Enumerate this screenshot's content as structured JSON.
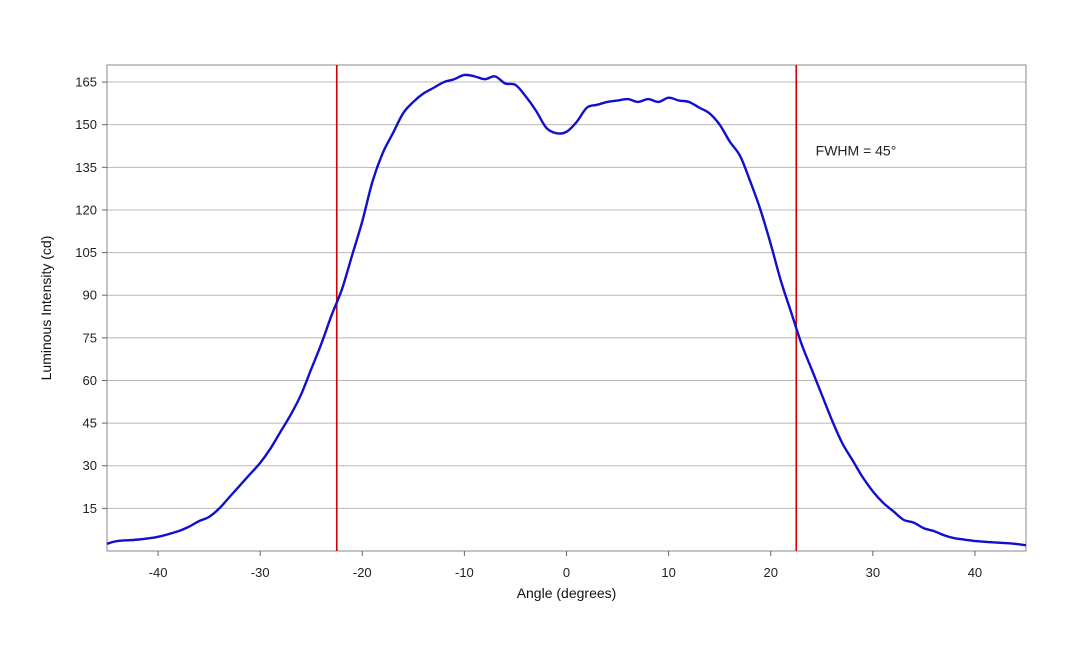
{
  "chart_data": {
    "type": "line",
    "title": "",
    "xlabel": "Angle (degrees)",
    "ylabel": "Luminous Intensity (cd)",
    "xlim": [
      -45,
      45
    ],
    "ylim": [
      0,
      171
    ],
    "x_ticks": [
      -40,
      -30,
      -20,
      -10,
      0,
      10,
      20,
      30,
      40
    ],
    "y_ticks": [
      15,
      30,
      45,
      60,
      75,
      90,
      105,
      120,
      135,
      150,
      165
    ],
    "grid": "horizontal",
    "legend": "none",
    "series": [
      {
        "color": "#1010cc",
        "x": [
          -45,
          -44,
          -42,
          -40,
          -38,
          -37,
          -36,
          -35,
          -34,
          -33,
          -32,
          -31,
          -30,
          -29,
          -28,
          -27,
          -26,
          -25,
          -24,
          -23,
          -22,
          -21,
          -20,
          -19,
          -18,
          -17,
          -16,
          -15,
          -14,
          -13,
          -12,
          -11,
          -10,
          -9,
          -8,
          -7,
          -6,
          -5,
          -4,
          -3,
          -2,
          -1,
          0,
          1,
          2,
          3,
          4,
          5,
          6,
          7,
          8,
          9,
          10,
          11,
          12,
          13,
          14,
          15,
          16,
          17,
          18,
          19,
          20,
          21,
          22,
          23,
          24,
          25,
          26,
          27,
          28,
          29,
          30,
          31,
          32,
          33,
          34,
          35,
          36,
          37,
          38,
          39,
          40,
          42,
          44,
          45
        ],
        "y": [
          2.5,
          3.5,
          4,
          5,
          7,
          8.5,
          10.5,
          12,
          15,
          19,
          23,
          27,
          31,
          36,
          42,
          48,
          55,
          64,
          73,
          83,
          92,
          104,
          116,
          130,
          140,
          147,
          154,
          158,
          161,
          163,
          165,
          166,
          167.5,
          167,
          166,
          167,
          164.5,
          164,
          160,
          155,
          149,
          147,
          147.5,
          151,
          156,
          157,
          158,
          158.5,
          159,
          158,
          159,
          158,
          159.5,
          158.5,
          158,
          156,
          154,
          150,
          144,
          139,
          130,
          120,
          108,
          95,
          84,
          73,
          64,
          55,
          46,
          38,
          32,
          26,
          21,
          17,
          14,
          11,
          10,
          8,
          7,
          5.5,
          4.5,
          4,
          3.5,
          3,
          2.5,
          2
        ]
      }
    ],
    "vlines": [
      {
        "x": -22.5,
        "color": "#d00000"
      },
      {
        "x": 22.5,
        "color": "#d00000"
      }
    ],
    "annotations": [
      {
        "text": "FWHM = 45°"
      }
    ]
  }
}
